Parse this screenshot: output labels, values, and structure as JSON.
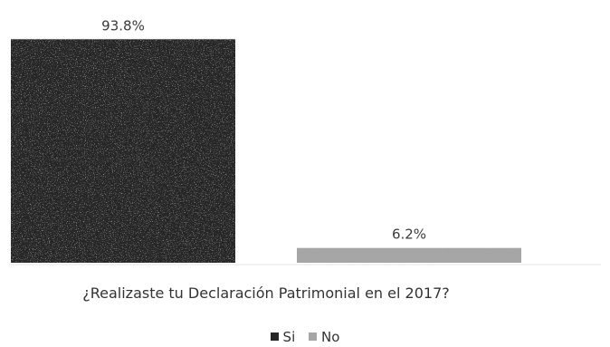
{
  "chart_data": {
    "type": "bar",
    "categories": [
      "¿Realizaste tu Declaración Patrimonial en el 2017?"
    ],
    "series": [
      {
        "name": "Si",
        "values": [
          93.8
        ],
        "label": "93.8%",
        "color": "#262626"
      },
      {
        "name": "No",
        "values": [
          6.2
        ],
        "label": "6.2%",
        "color": "#a6a6a6"
      }
    ],
    "ylim": [
      0,
      100
    ],
    "grid": false,
    "legend": "bottom"
  }
}
